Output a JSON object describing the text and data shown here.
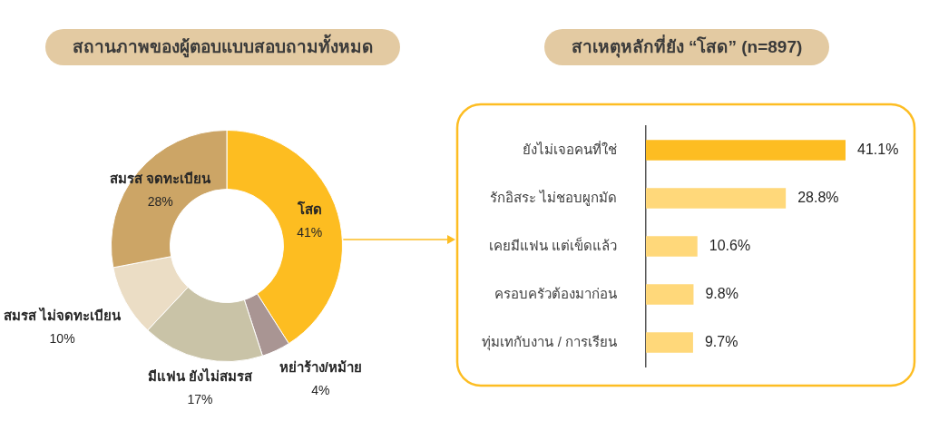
{
  "chart_data": [
    {
      "type": "donut",
      "title": "สถานภาพของผู้ตอบแบบสอบถามทั้งหมด",
      "categories": [
        "โสด",
        "หย่าร้าง/หม้าย",
        "มีแฟน ยังไม่สมรส",
        "สมรส ไม่จดทะเบียน",
        "สมรส จดทะเบียน"
      ],
      "values": [
        41,
        4,
        17,
        10,
        28
      ],
      "colors": [
        "#fdbd21",
        "#a99593",
        "#c9c3a7",
        "#ebddc5",
        "#cca566"
      ],
      "value_labels": [
        "41%",
        "4%",
        "17%",
        "10%",
        "28%"
      ]
    },
    {
      "type": "bar",
      "orientation": "horizontal",
      "title": "สาเหตุหลักที่ยัง “โสด” (n=897)",
      "categories": [
        "ยังไม่เจอคนที่ใช่",
        "รักอิสระ ไม่ชอบผูกมัด",
        "เคยมีแฟน แต่เข็ดแล้ว",
        "ครอบครัวต้องมาก่อน",
        "ทุ่มเทกับงาน / การเรียน"
      ],
      "values": [
        41.1,
        28.8,
        10.6,
        9.8,
        9.7
      ],
      "colors": [
        "#fdbd22",
        "#ffd87a",
        "#ffd87a",
        "#ffd87a",
        "#ffd87a"
      ],
      "value_labels": [
        "41.1%",
        "28.8%",
        "10.6%",
        "9.8%",
        "9.7%"
      ]
    }
  ]
}
